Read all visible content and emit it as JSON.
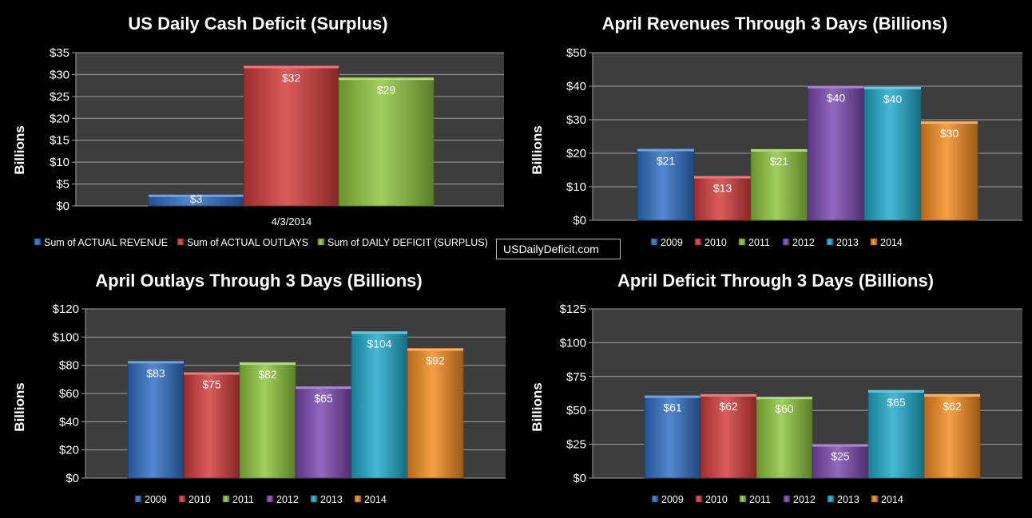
{
  "watermark": "USDailyDeficit.com",
  "chart_data": [
    {
      "type": "bar",
      "title": "US Daily Cash Deficit (Surplus)",
      "ylabel": "Billions",
      "categories": [
        "4/3/2014"
      ],
      "ylim": [
        0,
        35
      ],
      "yticks": [
        "$0",
        "$5",
        "$10",
        "$15",
        "$20",
        "$25",
        "$30",
        "$35"
      ],
      "grid": true,
      "legend_position": "bottom",
      "series": [
        {
          "name": "Sum of ACTUAL REVENUE",
          "values": [
            2.6
          ],
          "label": "$3",
          "color": "#2e6ec4"
        },
        {
          "name": "Sum of ACTUAL OUTLAYS",
          "values": [
            32
          ],
          "label": "$32",
          "color": "#d23a3a"
        },
        {
          "name": "Sum of DAILY DEFICIT (SURPLUS)",
          "values": [
            29.3
          ],
          "label": "$29",
          "color": "#8cc43c"
        }
      ]
    },
    {
      "type": "bar",
      "title": "April Revenues Through 3 Days (Billions)",
      "ylabel": "Billions",
      "ylim": [
        0,
        50
      ],
      "yticks": [
        "$0",
        "$10",
        "$20",
        "$30",
        "$40",
        "$50"
      ],
      "grid": true,
      "legend_position": "bottom",
      "series": [
        {
          "name": "2009",
          "values": [
            21.3
          ],
          "label": "$21",
          "color": "#2e6ec4"
        },
        {
          "name": "2010",
          "values": [
            13.2
          ],
          "label": "$13",
          "color": "#d23a3a"
        },
        {
          "name": "2011",
          "values": [
            21.2
          ],
          "label": "$21",
          "color": "#8cc43c"
        },
        {
          "name": "2012",
          "values": [
            40.1
          ],
          "label": "$40",
          "color": "#7a48b0"
        },
        {
          "name": "2013",
          "values": [
            39.8
          ],
          "label": "$40",
          "color": "#1fa9c9"
        },
        {
          "name": "2014",
          "values": [
            29.5
          ],
          "label": "$30",
          "color": "#f28a1e"
        }
      ]
    },
    {
      "type": "bar",
      "title": "April Outlays Through 3 Days (Billions)",
      "ylabel": "Billions",
      "ylim": [
        0,
        120
      ],
      "yticks": [
        "$0",
        "$20",
        "$40",
        "$60",
        "$80",
        "$100",
        "$120"
      ],
      "grid": true,
      "legend_position": "bottom",
      "series": [
        {
          "name": "2009",
          "values": [
            83
          ],
          "label": "$83",
          "color": "#2e6ec4"
        },
        {
          "name": "2010",
          "values": [
            75
          ],
          "label": "$75",
          "color": "#d23a3a"
        },
        {
          "name": "2011",
          "values": [
            82
          ],
          "label": "$82",
          "color": "#8cc43c"
        },
        {
          "name": "2012",
          "values": [
            65
          ],
          "label": "$65",
          "color": "#7a48b0"
        },
        {
          "name": "2013",
          "values": [
            104
          ],
          "label": "$104",
          "color": "#1fa9c9"
        },
        {
          "name": "2014",
          "values": [
            92
          ],
          "label": "$92",
          "color": "#f28a1e"
        }
      ]
    },
    {
      "type": "bar",
      "title": "April Deficit Through 3 Days (Billions)",
      "ylabel": "Billions",
      "ylim": [
        0,
        125
      ],
      "yticks": [
        "$0",
        "$25",
        "$50",
        "$75",
        "$100",
        "$125"
      ],
      "grid": true,
      "legend_position": "bottom",
      "series": [
        {
          "name": "2009",
          "values": [
            61
          ],
          "label": "$61",
          "color": "#2e6ec4"
        },
        {
          "name": "2010",
          "values": [
            62
          ],
          "label": "$62",
          "color": "#d23a3a"
        },
        {
          "name": "2011",
          "values": [
            60
          ],
          "label": "$60",
          "color": "#8cc43c"
        },
        {
          "name": "2012",
          "values": [
            25
          ],
          "label": "$25",
          "color": "#7a48b0"
        },
        {
          "name": "2013",
          "values": [
            65
          ],
          "label": "$65",
          "color": "#1fa9c9"
        },
        {
          "name": "2014",
          "values": [
            62
          ],
          "label": "$62",
          "color": "#f28a1e"
        }
      ]
    }
  ]
}
